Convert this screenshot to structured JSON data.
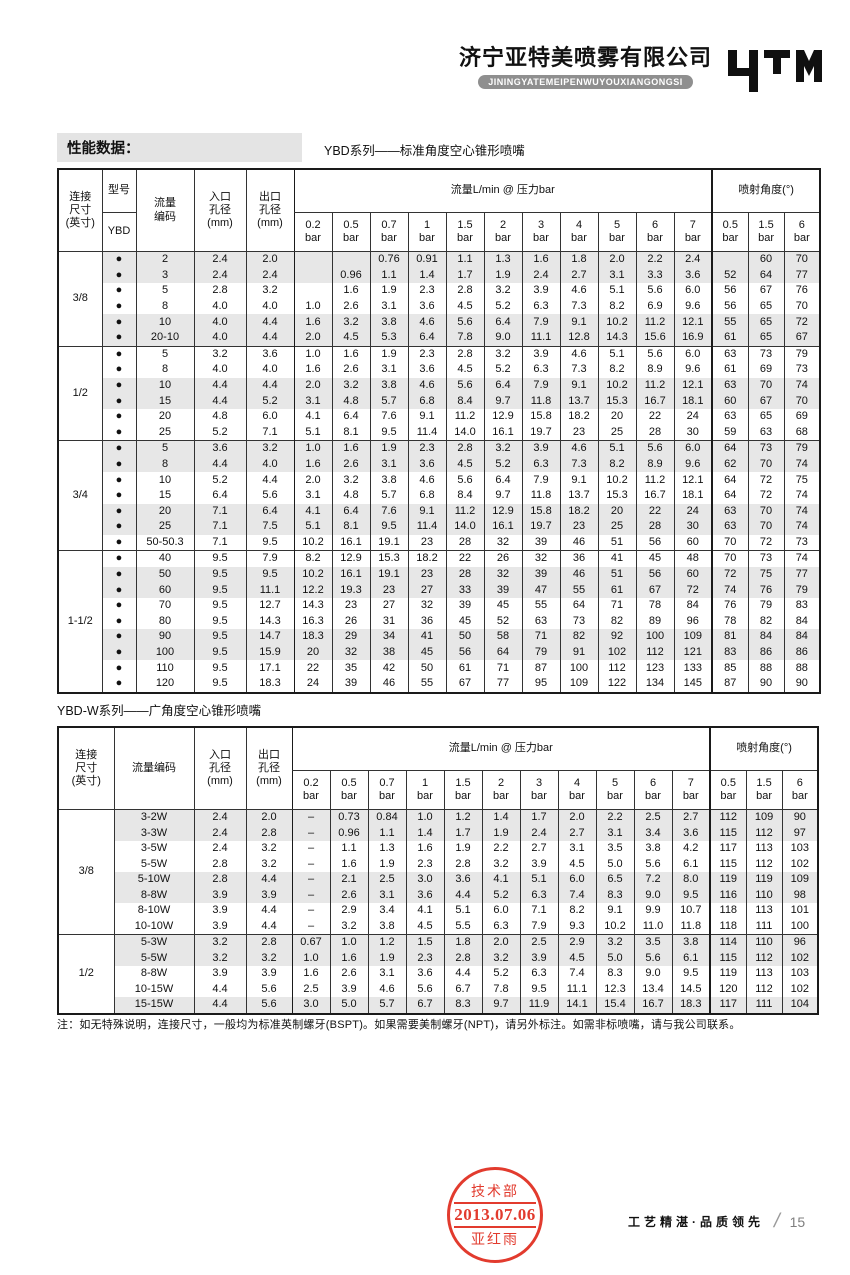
{
  "header": {
    "company_cn": "济宁亚特美喷雾有限公司",
    "company_pinyin": "JININGYATEMEIPENWUYOUXIANGONGSI",
    "logo_text": "YTM"
  },
  "section_label": "性能数据：",
  "table1": {
    "title": "YBD系列——标准角度空心锥形喷嘴",
    "headers": {
      "connection": "连接\n尺寸\n(英寸)",
      "model_top": "型号",
      "model_bottom": "YBD",
      "flow_code": "流量\n编码",
      "inlet": "入口\n孔径\n(mm)",
      "outlet": "出口\n孔径\n(mm)",
      "flow_group": "流量L/min @ 压力bar",
      "angle_group": "喷射角度(°)",
      "pressures": [
        "0.2",
        "0.5",
        "0.7",
        "1",
        "1.5",
        "2",
        "3",
        "4",
        "5",
        "6",
        "7"
      ],
      "angle_pressures": [
        "0.5",
        "1.5",
        "6"
      ],
      "bar": "bar"
    },
    "dot": "●",
    "groups": [
      {
        "size": "3/8",
        "rows": [
          [
            "2",
            "2.4",
            "2.0",
            [
              "",
              "",
              "0.76",
              "0.91",
              "1.1",
              "1.3",
              "1.6",
              "1.8",
              "2.0",
              "2.2",
              "2.4"
            ],
            [
              "",
              "60",
              "70"
            ]
          ],
          [
            "3",
            "2.4",
            "2.4",
            [
              "",
              "0.96",
              "1.1",
              "1.4",
              "1.7",
              "1.9",
              "2.4",
              "2.7",
              "3.1",
              "3.3",
              "3.6"
            ],
            [
              "52",
              "64",
              "77"
            ]
          ],
          [
            "5",
            "2.8",
            "3.2",
            [
              "",
              "1.6",
              "1.9",
              "2.3",
              "2.8",
              "3.2",
              "3.9",
              "4.6",
              "5.1",
              "5.6",
              "6.0"
            ],
            [
              "56",
              "67",
              "76"
            ]
          ],
          [
            "8",
            "4.0",
            "4.0",
            [
              "1.0",
              "2.6",
              "3.1",
              "3.6",
              "4.5",
              "5.2",
              "6.3",
              "7.3",
              "8.2",
              "6.9",
              "9.6"
            ],
            [
              "56",
              "65",
              "70"
            ]
          ],
          [
            "10",
            "4.0",
            "4.4",
            [
              "1.6",
              "3.2",
              "3.8",
              "4.6",
              "5.6",
              "6.4",
              "7.9",
              "9.1",
              "10.2",
              "11.2",
              "12.1"
            ],
            [
              "55",
              "65",
              "72"
            ]
          ],
          [
            "20-10",
            "4.0",
            "4.4",
            [
              "2.0",
              "4.5",
              "5.3",
              "6.4",
              "7.8",
              "9.0",
              "11.1",
              "12.8",
              "14.3",
              "15.6",
              "16.9"
            ],
            [
              "61",
              "65",
              "67"
            ]
          ]
        ]
      },
      {
        "size": "1/2",
        "rows": [
          [
            "5",
            "3.2",
            "3.6",
            [
              "1.0",
              "1.6",
              "1.9",
              "2.3",
              "2.8",
              "3.2",
              "3.9",
              "4.6",
              "5.1",
              "5.6",
              "6.0"
            ],
            [
              "63",
              "73",
              "79"
            ]
          ],
          [
            "8",
            "4.0",
            "4.0",
            [
              "1.6",
              "2.6",
              "3.1",
              "3.6",
              "4.5",
              "5.2",
              "6.3",
              "7.3",
              "8.2",
              "8.9",
              "9.6"
            ],
            [
              "61",
              "69",
              "73"
            ]
          ],
          [
            "10",
            "4.4",
            "4.4",
            [
              "2.0",
              "3.2",
              "3.8",
              "4.6",
              "5.6",
              "6.4",
              "7.9",
              "9.1",
              "10.2",
              "11.2",
              "12.1"
            ],
            [
              "63",
              "70",
              "74"
            ]
          ],
          [
            "15",
            "4.4",
            "5.2",
            [
              "3.1",
              "4.8",
              "5.7",
              "6.8",
              "8.4",
              "9.7",
              "11.8",
              "13.7",
              "15.3",
              "16.7",
              "18.1"
            ],
            [
              "60",
              "67",
              "70"
            ]
          ],
          [
            "20",
            "4.8",
            "6.0",
            [
              "4.1",
              "6.4",
              "7.6",
              "9.1",
              "11.2",
              "12.9",
              "15.8",
              "18.2",
              "20",
              "22",
              "24"
            ],
            [
              "63",
              "65",
              "69"
            ]
          ],
          [
            "25",
            "5.2",
            "7.1",
            [
              "5.1",
              "8.1",
              "9.5",
              "11.4",
              "14.0",
              "16.1",
              "19.7",
              "23",
              "25",
              "28",
              "30"
            ],
            [
              "59",
              "63",
              "68"
            ]
          ]
        ]
      },
      {
        "size": "3/4",
        "rows": [
          [
            "5",
            "3.6",
            "3.2",
            [
              "1.0",
              "1.6",
              "1.9",
              "2.3",
              "2.8",
              "3.2",
              "3.9",
              "4.6",
              "5.1",
              "5.6",
              "6.0"
            ],
            [
              "64",
              "73",
              "79"
            ]
          ],
          [
            "8",
            "4.4",
            "4.0",
            [
              "1.6",
              "2.6",
              "3.1",
              "3.6",
              "4.5",
              "5.2",
              "6.3",
              "7.3",
              "8.2",
              "8.9",
              "9.6"
            ],
            [
              "62",
              "70",
              "74"
            ]
          ],
          [
            "10",
            "5.2",
            "4.4",
            [
              "2.0",
              "3.2",
              "3.8",
              "4.6",
              "5.6",
              "6.4",
              "7.9",
              "9.1",
              "10.2",
              "11.2",
              "12.1"
            ],
            [
              "64",
              "72",
              "75"
            ]
          ],
          [
            "15",
            "6.4",
            "5.6",
            [
              "3.1",
              "4.8",
              "5.7",
              "6.8",
              "8.4",
              "9.7",
              "11.8",
              "13.7",
              "15.3",
              "16.7",
              "18.1"
            ],
            [
              "64",
              "72",
              "74"
            ]
          ],
          [
            "20",
            "7.1",
            "6.4",
            [
              "4.1",
              "6.4",
              "7.6",
              "9.1",
              "11.2",
              "12.9",
              "15.8",
              "18.2",
              "20",
              "22",
              "24"
            ],
            [
              "63",
              "70",
              "74"
            ]
          ],
          [
            "25",
            "7.1",
            "7.5",
            [
              "5.1",
              "8.1",
              "9.5",
              "11.4",
              "14.0",
              "16.1",
              "19.7",
              "23",
              "25",
              "28",
              "30"
            ],
            [
              "63",
              "70",
              "74"
            ]
          ],
          [
            "50-50.3",
            "7.1",
            "9.5",
            [
              "10.2",
              "16.1",
              "19.1",
              "23",
              "28",
              "32",
              "39",
              "46",
              "51",
              "56",
              "60"
            ],
            [
              "70",
              "72",
              "73"
            ]
          ]
        ]
      },
      {
        "size": "1-1/2",
        "rows": [
          [
            "40",
            "9.5",
            "7.9",
            [
              "8.2",
              "12.9",
              "15.3",
              "18.2",
              "22",
              "26",
              "32",
              "36",
              "41",
              "45",
              "48"
            ],
            [
              "70",
              "73",
              "74"
            ]
          ],
          [
            "50",
            "9.5",
            "9.5",
            [
              "10.2",
              "16.1",
              "19.1",
              "23",
              "28",
              "32",
              "39",
              "46",
              "51",
              "56",
              "60"
            ],
            [
              "72",
              "75",
              "77"
            ]
          ],
          [
            "60",
            "9.5",
            "11.1",
            [
              "12.2",
              "19.3",
              "23",
              "27",
              "33",
              "39",
              "47",
              "55",
              "61",
              "67",
              "72"
            ],
            [
              "74",
              "76",
              "79"
            ]
          ],
          [
            "70",
            "9.5",
            "12.7",
            [
              "14.3",
              "23",
              "27",
              "32",
              "39",
              "45",
              "55",
              "64",
              "71",
              "78",
              "84"
            ],
            [
              "76",
              "79",
              "83"
            ]
          ],
          [
            "80",
            "9.5",
            "14.3",
            [
              "16.3",
              "26",
              "31",
              "36",
              "45",
              "52",
              "63",
              "73",
              "82",
              "89",
              "96"
            ],
            [
              "78",
              "82",
              "84"
            ]
          ],
          [
            "90",
            "9.5",
            "14.7",
            [
              "18.3",
              "29",
              "34",
              "41",
              "50",
              "58",
              "71",
              "82",
              "92",
              "100",
              "109"
            ],
            [
              "81",
              "84",
              "84"
            ]
          ],
          [
            "100",
            "9.5",
            "15.9",
            [
              "20",
              "32",
              "38",
              "45",
              "56",
              "64",
              "79",
              "91",
              "102",
              "112",
              "121"
            ],
            [
              "83",
              "86",
              "86"
            ]
          ],
          [
            "110",
            "9.5",
            "17.1",
            [
              "22",
              "35",
              "42",
              "50",
              "61",
              "71",
              "87",
              "100",
              "112",
              "123",
              "133"
            ],
            [
              "85",
              "88",
              "88"
            ]
          ],
          [
            "120",
            "9.5",
            "18.3",
            [
              "24",
              "39",
              "46",
              "55",
              "67",
              "77",
              "95",
              "109",
              "122",
              "134",
              "145"
            ],
            [
              "87",
              "90",
              "90"
            ]
          ]
        ]
      }
    ]
  },
  "table2": {
    "title": "YBD-W系列——广角度空心锥形喷嘴",
    "headers": {
      "connection": "连接\n尺寸\n(英寸)",
      "flow_code": "流量编码",
      "inlet": "入口\n孔径\n(mm)",
      "outlet": "出口\n孔径\n(mm)",
      "flow_group": "流量L/min @ 压力bar",
      "angle_group": "喷射角度(°)",
      "pressures": [
        "0.2",
        "0.5",
        "0.7",
        "1",
        "1.5",
        "2",
        "3",
        "4",
        "5",
        "6",
        "7"
      ],
      "angle_pressures": [
        "0.5",
        "1.5",
        "6"
      ],
      "bar": "bar"
    },
    "groups": [
      {
        "size": "3/8",
        "rows": [
          [
            "3-2W",
            "2.4",
            "2.0",
            [
              "–",
              "0.73",
              "0.84",
              "1.0",
              "1.2",
              "1.4",
              "1.7",
              "2.0",
              "2.2",
              "2.5",
              "2.7"
            ],
            [
              "112",
              "109",
              "90"
            ]
          ],
          [
            "3-3W",
            "2.4",
            "2.8",
            [
              "–",
              "0.96",
              "1.1",
              "1.4",
              "1.7",
              "1.9",
              "2.4",
              "2.7",
              "3.1",
              "3.4",
              "3.6"
            ],
            [
              "115",
              "112",
              "97"
            ]
          ],
          [
            "3-5W",
            "2.4",
            "3.2",
            [
              "–",
              "1.1",
              "1.3",
              "1.6",
              "1.9",
              "2.2",
              "2.7",
              "3.1",
              "3.5",
              "3.8",
              "4.2"
            ],
            [
              "117",
              "113",
              "103"
            ]
          ],
          [
            "5-5W",
            "2.8",
            "3.2",
            [
              "–",
              "1.6",
              "1.9",
              "2.3",
              "2.8",
              "3.2",
              "3.9",
              "4.5",
              "5.0",
              "5.6",
              "6.1"
            ],
            [
              "115",
              "112",
              "102"
            ]
          ],
          [
            "5-10W",
            "2.8",
            "4.4",
            [
              "–",
              "2.1",
              "2.5",
              "3.0",
              "3.6",
              "4.1",
              "5.1",
              "6.0",
              "6.5",
              "7.2",
              "8.0"
            ],
            [
              "119",
              "119",
              "109"
            ]
          ],
          [
            "8-8W",
            "3.9",
            "3.9",
            [
              "–",
              "2.6",
              "3.1",
              "3.6",
              "4.4",
              "5.2",
              "6.3",
              "7.4",
              "8.3",
              "9.0",
              "9.5"
            ],
            [
              "116",
              "110",
              "98"
            ]
          ],
          [
            "8-10W",
            "3.9",
            "4.4",
            [
              "–",
              "2.9",
              "3.4",
              "4.1",
              "5.1",
              "6.0",
              "7.1",
              "8.2",
              "9.1",
              "9.9",
              "10.7"
            ],
            [
              "118",
              "113",
              "101"
            ]
          ],
          [
            "10-10W",
            "3.9",
            "4.4",
            [
              "–",
              "3.2",
              "3.8",
              "4.5",
              "5.5",
              "6.3",
              "7.9",
              "9.3",
              "10.2",
              "11.0",
              "11.8"
            ],
            [
              "118",
              "111",
              "100"
            ]
          ]
        ]
      },
      {
        "size": "1/2",
        "rows": [
          [
            "5-3W",
            "3.2",
            "2.8",
            [
              "0.67",
              "1.0",
              "1.2",
              "1.5",
              "1.8",
              "2.0",
              "2.5",
              "2.9",
              "3.2",
              "3.5",
              "3.8"
            ],
            [
              "114",
              "110",
              "96"
            ]
          ],
          [
            "5-5W",
            "3.2",
            "3.2",
            [
              "1.0",
              "1.6",
              "1.9",
              "2.3",
              "2.8",
              "3.2",
              "3.9",
              "4.5",
              "5.0",
              "5.6",
              "6.1"
            ],
            [
              "115",
              "112",
              "102"
            ]
          ],
          [
            "8-8W",
            "3.9",
            "3.9",
            [
              "1.6",
              "2.6",
              "3.1",
              "3.6",
              "4.4",
              "5.2",
              "6.3",
              "7.4",
              "8.3",
              "9.0",
              "9.5"
            ],
            [
              "119",
              "113",
              "103"
            ]
          ],
          [
            "10-15W",
            "4.4",
            "5.6",
            [
              "2.5",
              "3.9",
              "4.6",
              "5.6",
              "6.7",
              "7.8",
              "9.5",
              "11.1",
              "12.3",
              "13.4",
              "14.5"
            ],
            [
              "120",
              "112",
              "102"
            ]
          ],
          [
            "15-15W",
            "4.4",
            "5.6",
            [
              "3.0",
              "5.0",
              "5.7",
              "6.7",
              "8.3",
              "9.7",
              "11.9",
              "14.1",
              "15.4",
              "16.7",
              "18.3"
            ],
            [
              "117",
              "111",
              "104"
            ]
          ]
        ]
      }
    ]
  },
  "note": "注：如无特殊说明，连接尺寸，一般均为标准英制螺牙(BSPT)。如果需要美制螺牙(NPT)，请另外标注。如需非标喷嘴，请与我公司联系。",
  "stamp": {
    "dept": "技术部",
    "date": "2013.07.06",
    "name": "亚红雨",
    "color": "#e23b2e"
  },
  "footer": {
    "slogan": "工艺精湛·品质领先",
    "divider": "/",
    "page": "15"
  }
}
